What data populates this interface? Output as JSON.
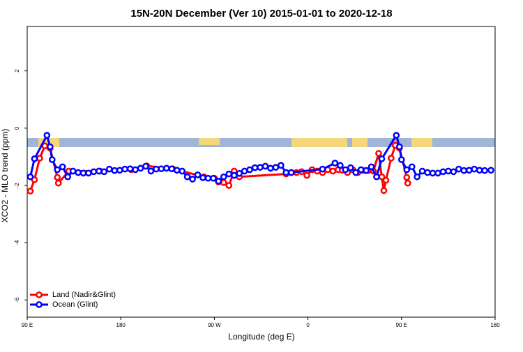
{
  "chart_data": {
    "type": "line",
    "title": "15N-20N December (Ver 10)   2015-01-01 to 2020-12-18",
    "x_label": "Longitude (deg E)",
    "y_label": "XCO2 - MLO trend (ppm)",
    "xlim": [
      90,
      540
    ],
    "xticks": [
      {
        "value": 90,
        "label": "90 E"
      },
      {
        "value": 180,
        "label": "180"
      },
      {
        "value": 270,
        "label": "90 W"
      },
      {
        "value": 360,
        "label": "0"
      },
      {
        "value": 450,
        "label": "90 E"
      },
      {
        "value": 540,
        "label": "180"
      }
    ],
    "ylim": [
      -6.6,
      3.55
    ],
    "yticks": [
      2,
      0,
      -2,
      -4,
      -6
    ],
    "legend": "bottom-left",
    "series": [
      {
        "name": "Land (Nadir&Glint)",
        "color": "#ff0000",
        "x": [
          93,
          97,
          102,
          107,
          112,
          119,
          120,
          130,
          160,
          190,
          205,
          230,
          260,
          270,
          274,
          279,
          284,
          289,
          294,
          339,
          344,
          349,
          354,
          359,
          364,
          369,
          374,
          379,
          384,
          389,
          393,
          398,
          403,
          408,
          413,
          418,
          423,
          428,
          431,
          433,
          435,
          440,
          444,
          448,
          455,
          456
        ],
        "values": [
          -2.2,
          -1.8,
          -1.05,
          -0.62,
          -0.7,
          -1.72,
          -1.92,
          -1.5,
          -1.5,
          -1.45,
          -1.32,
          -1.42,
          -1.7,
          -1.75,
          -1.88,
          -1.9,
          -2.0,
          -1.5,
          -1.7,
          -1.6,
          -1.55,
          -1.55,
          -1.52,
          -1.65,
          -1.45,
          -1.5,
          -1.55,
          -1.45,
          -1.5,
          -1.45,
          -1.47,
          -1.55,
          -1.45,
          -1.55,
          -1.48,
          -1.48,
          -1.5,
          -0.88,
          -1.7,
          -2.18,
          -1.82,
          -1.05,
          -0.6,
          -0.7,
          -1.72,
          -1.92
        ]
      },
      {
        "name": "Ocean (Glint)",
        "color": "#0000ff",
        "x": [
          93,
          97,
          109,
          112,
          114,
          119,
          124,
          129,
          134,
          139,
          144,
          149,
          154,
          159,
          164,
          169,
          174,
          179,
          184,
          189,
          194,
          199,
          204,
          209,
          214,
          219,
          224,
          229,
          234,
          239,
          244,
          249,
          254,
          259,
          264,
          269,
          274,
          279,
          284,
          289,
          294,
          299,
          304,
          309,
          314,
          319,
          324,
          329,
          334,
          339,
          344,
          374,
          386,
          391,
          396,
          401,
          406,
          411,
          416,
          421,
          426,
          431,
          445,
          448,
          450,
          455,
          460,
          465,
          470,
          475,
          480,
          485,
          490,
          495,
          500,
          505,
          510,
          515,
          520,
          525,
          530,
          536
        ],
        "values": [
          -1.7,
          -1.07,
          -0.25,
          -0.65,
          -1.1,
          -1.45,
          -1.35,
          -1.7,
          -1.5,
          -1.55,
          -1.57,
          -1.57,
          -1.52,
          -1.5,
          -1.52,
          -1.43,
          -1.48,
          -1.47,
          -1.43,
          -1.42,
          -1.45,
          -1.4,
          -1.33,
          -1.5,
          -1.43,
          -1.42,
          -1.4,
          -1.42,
          -1.47,
          -1.5,
          -1.7,
          -1.78,
          -1.63,
          -1.73,
          -1.75,
          -1.75,
          -1.85,
          -1.7,
          -1.6,
          -1.65,
          -1.58,
          -1.5,
          -1.45,
          -1.38,
          -1.37,
          -1.33,
          -1.4,
          -1.37,
          -1.3,
          -1.55,
          -1.55,
          -1.43,
          -1.22,
          -1.3,
          -1.45,
          -1.38,
          -1.55,
          -1.45,
          -1.48,
          -1.35,
          -1.7,
          -1.07,
          -0.25,
          -0.65,
          -1.1,
          -1.45,
          -1.35,
          -1.7,
          -1.5,
          -1.55,
          -1.57,
          -1.57,
          -1.52,
          -1.5,
          -1.52,
          -1.43,
          -1.48,
          -1.47,
          -1.43,
          -1.47,
          -1.48,
          -1.47
        ]
      }
    ]
  }
}
